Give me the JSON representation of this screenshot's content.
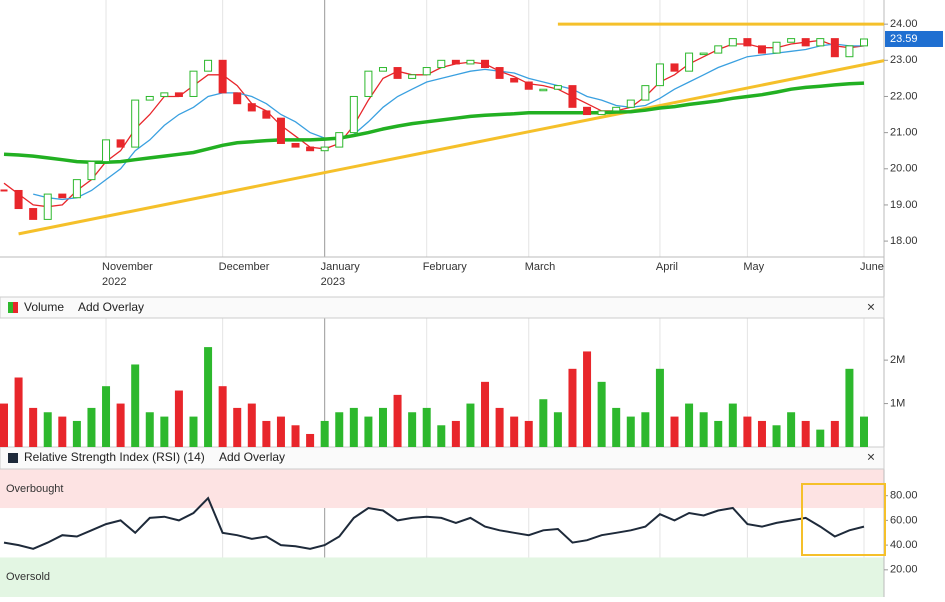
{
  "chart_data": [
    {
      "type": "candlestick",
      "categories": [
        null,
        null,
        null,
        null,
        null,
        null,
        null,
        "November",
        null,
        null,
        null,
        null,
        null,
        null,
        null,
        "December",
        null,
        null,
        null,
        null,
        null,
        null,
        "January",
        null,
        null,
        null,
        null,
        null,
        null,
        "February",
        null,
        null,
        null,
        null,
        null,
        null,
        "March",
        null,
        null,
        null,
        null,
        null,
        null,
        null,
        null,
        "April",
        null,
        null,
        null,
        null,
        null,
        "May",
        null,
        null,
        null,
        null,
        null,
        null,
        null,
        "June"
      ],
      "category_years": [
        null,
        null,
        null,
        null,
        null,
        null,
        null,
        "2022",
        null,
        null,
        null,
        null,
        null,
        null,
        null,
        null,
        null,
        null,
        null,
        null,
        null,
        null,
        "2023",
        null,
        null,
        null,
        null,
        null,
        null,
        null,
        null,
        null,
        null,
        null,
        null,
        null,
        null,
        null,
        null,
        null,
        null,
        null,
        null,
        null,
        null,
        null,
        null,
        null,
        null,
        null,
        null,
        null,
        null,
        null,
        null,
        null,
        null,
        null,
        null,
        null
      ],
      "close": [
        19.4,
        18.9,
        18.6,
        19.3,
        19.2,
        19.7,
        20.2,
        20.8,
        20.6,
        21.9,
        22.0,
        22.1,
        22.0,
        22.7,
        23.0,
        22.1,
        21.8,
        21.6,
        21.4,
        20.7,
        20.6,
        20.5,
        20.6,
        21.0,
        22.0,
        22.7,
        22.8,
        22.5,
        22.6,
        22.8,
        23.0,
        22.9,
        23.0,
        22.8,
        22.5,
        22.4,
        22.2,
        22.2,
        22.3,
        21.7,
        21.5,
        21.6,
        21.7,
        21.9,
        22.3,
        22.9,
        22.7,
        23.2,
        23.2,
        23.4,
        23.6,
        23.4,
        23.2,
        23.5,
        23.6,
        23.4,
        23.6,
        23.1,
        23.4,
        23.59
      ],
      "up_color": "#2db82d",
      "down_color": "#e8262b",
      "moving_averages": [
        {
          "color": "#e8262b",
          "values": [
            19.6,
            19.3,
            19.0,
            18.95,
            19.0,
            19.4,
            19.7,
            20.2,
            20.5,
            21.1,
            21.5,
            22.0,
            22.0,
            22.3,
            22.6,
            22.6,
            22.3,
            21.8,
            21.6,
            21.2,
            20.9,
            20.6,
            20.55,
            20.7,
            21.2,
            21.9,
            22.5,
            22.7,
            22.6,
            22.6,
            22.8,
            22.9,
            22.95,
            22.9,
            22.7,
            22.55,
            22.35,
            22.3,
            22.2,
            22.0,
            21.8,
            21.6,
            21.6,
            21.7,
            22.0,
            22.4,
            22.6,
            22.9,
            23.1,
            23.3,
            23.45,
            23.45,
            23.35,
            23.35,
            23.45,
            23.5,
            23.55,
            23.4,
            23.35,
            23.4
          ]
        },
        {
          "color": "#3aa0e0",
          "values": [
            null,
            null,
            19.3,
            19.2,
            19.15,
            19.2,
            19.4,
            19.7,
            20.0,
            20.5,
            20.8,
            21.2,
            21.5,
            21.7,
            22.0,
            22.1,
            22.1,
            22.0,
            21.8,
            21.5,
            21.3,
            21.0,
            20.85,
            20.8,
            20.95,
            21.3,
            21.7,
            22.0,
            22.2,
            22.4,
            22.5,
            22.6,
            22.7,
            22.75,
            22.7,
            22.65,
            22.5,
            22.4,
            22.3,
            22.2,
            22.0,
            21.9,
            21.75,
            21.7,
            21.75,
            21.95,
            22.2,
            22.4,
            22.6,
            22.8,
            22.95,
            23.1,
            23.15,
            23.2,
            23.25,
            23.3,
            23.4,
            23.45,
            23.4,
            23.4
          ]
        },
        {
          "color": "#22b022",
          "values": [
            20.4,
            20.38,
            20.35,
            20.3,
            20.25,
            20.2,
            20.18,
            20.18,
            20.2,
            20.25,
            20.3,
            20.35,
            20.4,
            20.45,
            20.55,
            20.65,
            20.72,
            20.75,
            20.78,
            20.8,
            20.8,
            20.8,
            20.82,
            20.85,
            20.92,
            21.0,
            21.1,
            21.18,
            21.25,
            21.3,
            21.35,
            21.4,
            21.45,
            21.48,
            21.5,
            21.52,
            21.55,
            21.55,
            21.55,
            21.55,
            21.55,
            21.55,
            21.57,
            21.58,
            21.62,
            21.68,
            21.72,
            21.78,
            21.83,
            21.88,
            21.95,
            22.0,
            22.05,
            22.12,
            22.2,
            22.25,
            22.28,
            22.32,
            22.35,
            22.37
          ]
        }
      ],
      "trendlines": [
        {
          "color": "#f5c02a",
          "x": [
            1,
            59
          ],
          "y": [
            18.2,
            22.88
          ]
        },
        {
          "color": "#f5c02a",
          "x": [
            38,
            59
          ],
          "y": [
            24.0,
            24.0
          ]
        }
      ],
      "last_price": 23.59,
      "last_price_color": "#1f6fd1",
      "ylim": [
        17.56,
        24.53
      ],
      "yticks": [
        {
          "value": 18,
          "label": "18.00"
        },
        {
          "value": 19,
          "label": "19.00"
        },
        {
          "value": 20,
          "label": "20.00"
        },
        {
          "value": 21,
          "label": "21.00"
        },
        {
          "value": 22,
          "label": "22.00"
        },
        {
          "value": 23,
          "label": "23.00"
        },
        {
          "value": 24,
          "label": "24.00"
        }
      ]
    },
    {
      "type": "bar",
      "title": "Volume",
      "overlay_button": "Add Overlay",
      "values": [
        1000000,
        1600000,
        900000,
        800000,
        700000,
        600000,
        900000,
        1400000,
        1000000,
        1900000,
        800000,
        700000,
        1300000,
        700000,
        2300000,
        1400000,
        900000,
        1000000,
        600000,
        700000,
        500000,
        300000,
        600000,
        800000,
        900000,
        700000,
        900000,
        1200000,
        800000,
        900000,
        500000,
        600000,
        1000000,
        1500000,
        900000,
        700000,
        600000,
        1100000,
        800000,
        1800000,
        2200000,
        1500000,
        900000,
        700000,
        800000,
        1800000,
        700000,
        1000000,
        800000,
        600000,
        1000000,
        700000,
        600000,
        500000,
        800000,
        600000,
        400000,
        600000,
        1800000,
        700000
      ],
      "ylim": [
        0,
        2970000
      ],
      "yticks": [
        {
          "value": 1000000,
          "label": "1M"
        },
        {
          "value": 2000000,
          "label": "2M"
        }
      ]
    },
    {
      "type": "line",
      "title": "Relative Strength Index (RSI) (14)",
      "overlay_button": "Add Overlay",
      "color": "#1e2a3a",
      "values": [
        42,
        40,
        37,
        42,
        48,
        47,
        52,
        57,
        60,
        50,
        62,
        63,
        60,
        66,
        78,
        50,
        48,
        45,
        47,
        40,
        39,
        37,
        40,
        47,
        62,
        70,
        68,
        60,
        62,
        63,
        62,
        58,
        62,
        55,
        52,
        50,
        48,
        52,
        53,
        42,
        44,
        48,
        50,
        52,
        55,
        65,
        60,
        66,
        64,
        68,
        70,
        57,
        55,
        58,
        60,
        62,
        55,
        47,
        52,
        55
      ],
      "overbought": {
        "label": "Overbought",
        "value": 70,
        "color": "#fde3e3"
      },
      "oversold": {
        "label": "Oversold",
        "value": 30,
        "color": "#e3f6e3"
      },
      "ylim": [
        -2,
        101.6
      ],
      "yticks": [
        {
          "value": 80,
          "label": "80.00"
        },
        {
          "value": 60,
          "label": "60.00"
        },
        {
          "value": 40,
          "label": "40.00"
        },
        {
          "value": 20,
          "label": "20.00"
        }
      ]
    }
  ]
}
